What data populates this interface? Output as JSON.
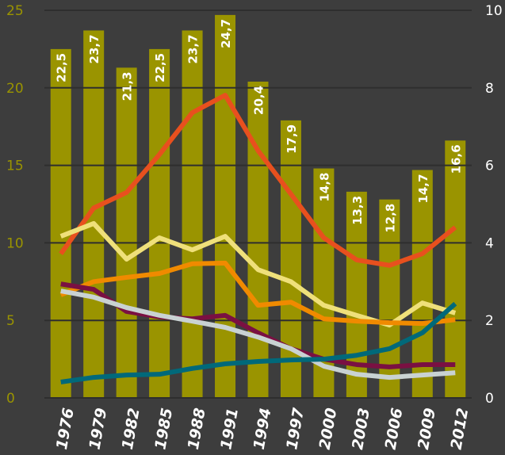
{
  "chart_data": {
    "type": "bar",
    "categories": [
      "1976",
      "1979",
      "1982",
      "1985",
      "1988",
      "1991",
      "1994",
      "1997",
      "2000",
      "2003",
      "2006",
      "2009",
      "2012"
    ],
    "values": [
      22.5,
      23.7,
      21.3,
      22.5,
      23.7,
      24.7,
      20.4,
      17.9,
      14.8,
      13.3,
      12.8,
      14.7,
      16.6
    ],
    "value_labels": [
      "22,5",
      "23,7",
      "21,3",
      "22,5",
      "23,7",
      "24,7",
      "20,4",
      "17,9",
      "14,8",
      "13,3",
      "12,8",
      "14,7",
      "16,6"
    ],
    "color": "#9a9400",
    "ylim": [
      0,
      25
    ],
    "yticks": [
      0,
      5,
      10,
      15,
      20,
      25
    ],
    "y2lim": [
      0,
      10
    ],
    "y2ticks": [
      0,
      2,
      4,
      6,
      8,
      10
    ],
    "grid": true,
    "series": [
      {
        "type": "line",
        "axis": "y2",
        "color": "#e8501e",
        "values": [
          3.72,
          4.9,
          5.3,
          6.28,
          7.36,
          7.81,
          6.38,
          5.26,
          4.13,
          3.56,
          3.42,
          3.72,
          4.4
        ]
      },
      {
        "type": "line",
        "axis": "y2",
        "color": "#efe07a",
        "values": [
          4.17,
          4.5,
          3.58,
          4.13,
          3.82,
          4.17,
          3.31,
          3.0,
          2.39,
          2.13,
          1.88,
          2.45,
          2.19
        ]
      },
      {
        "type": "line",
        "axis": "y2",
        "color": "#f08a00",
        "values": [
          2.66,
          3.0,
          3.11,
          3.21,
          3.46,
          3.48,
          2.39,
          2.47,
          2.04,
          1.98,
          1.94,
          1.92,
          2.02
        ]
      },
      {
        "type": "line",
        "axis": "y2",
        "color": "#7a1042",
        "values": [
          2.94,
          2.8,
          2.23,
          2.09,
          2.04,
          2.13,
          1.68,
          1.27,
          1.0,
          0.86,
          0.8,
          0.86,
          0.86
        ]
      },
      {
        "type": "line",
        "axis": "y2",
        "color": "#c9d2d2",
        "values": [
          2.76,
          2.6,
          2.33,
          2.13,
          1.98,
          1.82,
          1.57,
          1.27,
          0.82,
          0.61,
          0.53,
          0.59,
          0.65
        ]
      },
      {
        "type": "line",
        "axis": "y2",
        "color": "#00697a",
        "values": [
          0.41,
          0.53,
          0.59,
          0.61,
          0.76,
          0.88,
          0.94,
          0.98,
          1.0,
          1.1,
          1.27,
          1.68,
          2.43
        ]
      }
    ]
  }
}
